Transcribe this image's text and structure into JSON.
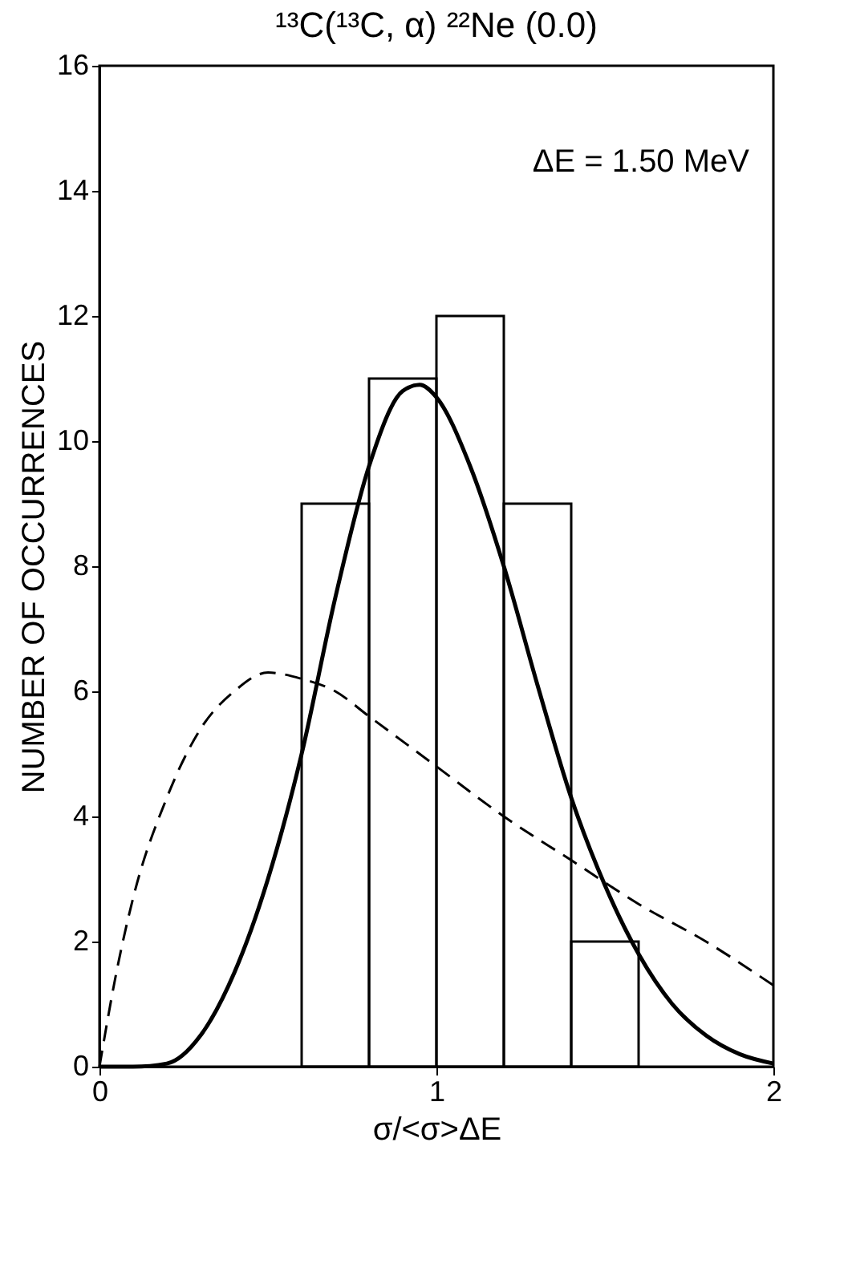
{
  "chart_data": {
    "type": "histogram",
    "title": "¹³C(¹³C, α) ²²Ne (0.0)",
    "xlabel": "σ/<σ>ΔE",
    "ylabel": "NUMBER OF OCCURRENCES",
    "annotations": [
      "ΔE = 1.50 MeV"
    ],
    "bins": [
      0.6,
      0.8,
      1.0,
      1.2,
      1.4,
      1.6
    ],
    "values": [
      9,
      11,
      12,
      9,
      2
    ],
    "color": "#000000",
    "series": [
      {
        "type": "line",
        "line_style": "solid",
        "color": "#000000",
        "x": [
          0,
          0.1,
          0.2,
          0.3,
          0.4,
          0.5,
          0.6,
          0.7,
          0.8,
          0.9,
          0.95,
          1.0,
          1.1,
          1.2,
          1.3,
          1.4,
          1.5,
          1.6,
          1.7,
          1.8,
          1.9,
          2.0
        ],
        "values": [
          0,
          0,
          0.05,
          0.5,
          1.5,
          3.0,
          5.0,
          7.5,
          9.6,
          10.8,
          10.9,
          10.7,
          9.6,
          8.0,
          6.1,
          4.3,
          2.9,
          1.8,
          1.0,
          0.5,
          0.2,
          0.05
        ]
      },
      {
        "type": "line",
        "line_style": "dashed",
        "color": "#000000",
        "x": [
          0,
          0.05,
          0.1,
          0.2,
          0.3,
          0.4,
          0.5,
          0.6,
          0.7,
          0.8,
          0.9,
          1.0,
          1.2,
          1.4,
          1.6,
          1.8,
          2.0
        ],
        "values": [
          0,
          1.5,
          2.7,
          4.3,
          5.4,
          6.0,
          6.3,
          6.2,
          6.0,
          5.6,
          5.2,
          4.8,
          4.0,
          3.3,
          2.6,
          2.0,
          1.3
        ]
      }
    ],
    "xlim": [
      0,
      2
    ],
    "xticks": [
      0,
      1,
      2
    ],
    "ylim": [
      0,
      16
    ],
    "yticks": [
      0,
      2,
      4,
      6,
      8,
      10,
      12,
      14,
      16
    ],
    "grid": false,
    "marker": "none"
  }
}
